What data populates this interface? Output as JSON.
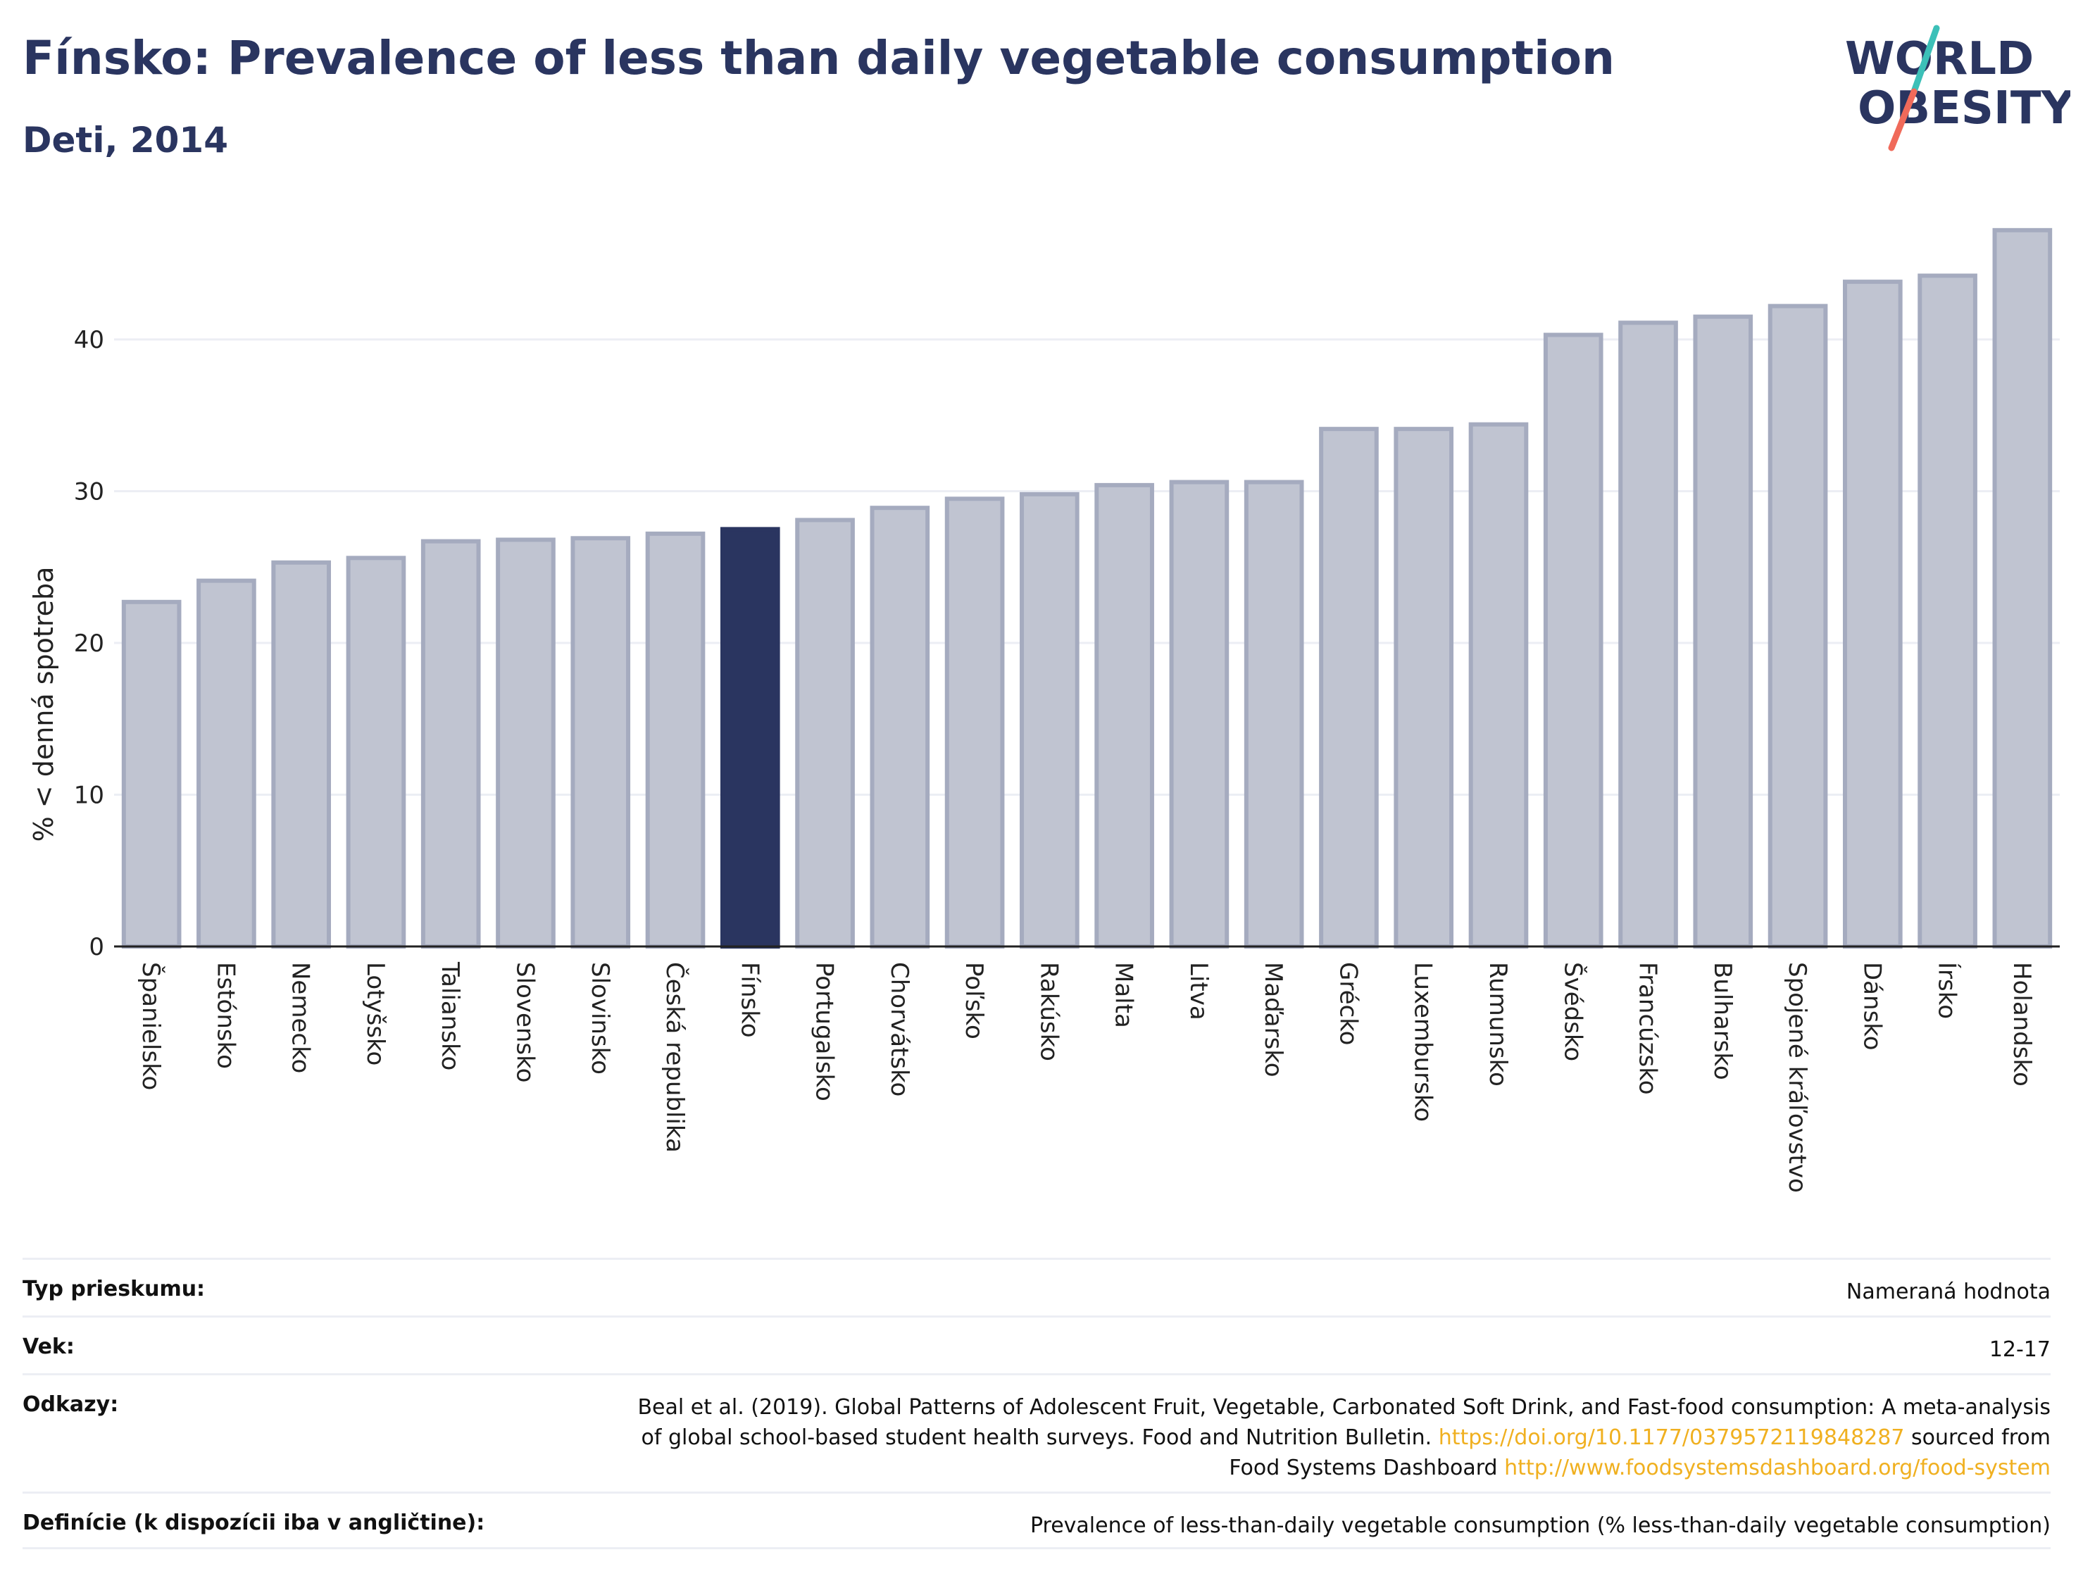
{
  "header": {
    "title": "Fínsko: Prevalence of less than daily vegetable consumption",
    "subtitle": "Deti, 2014"
  },
  "logo": {
    "line1": "WORLD",
    "line2": "OBESITY",
    "text_color": "#2a3560",
    "slash_colors": [
      "#3cc0b8",
      "#f06a5a"
    ]
  },
  "chart_data": {
    "type": "bar",
    "categories": [
      "Španielsko",
      "Estónsko",
      "Nemecko",
      "Lotyšsko",
      "Taliansko",
      "Slovensko",
      "Slovinsko",
      "Česká republika",
      "Fínsko",
      "Portugalsko",
      "Chorvátsko",
      "Poľsko",
      "Rakúsko",
      "Malta",
      "Litva",
      "Maďarsko",
      "Grécko",
      "Luxembursko",
      "Rumunsko",
      "Švédsko",
      "Francúzsko",
      "Bulharsko",
      "Spojené kráľovstvo",
      "Dánsko",
      "Írsko",
      "Holandsko"
    ],
    "values": [
      22.7,
      24.1,
      25.3,
      25.6,
      26.7,
      26.8,
      26.9,
      27.2,
      27.5,
      28.1,
      28.9,
      29.5,
      29.8,
      30.4,
      30.6,
      30.6,
      34.1,
      34.1,
      34.4,
      40.3,
      41.1,
      41.5,
      42.2,
      43.8,
      44.2,
      47.2
    ],
    "highlight": "Fínsko",
    "xlabel": "",
    "ylabel": "% < denná spotreba",
    "ylim": [
      0,
      48
    ],
    "yticks": [
      0,
      10,
      20,
      30,
      40
    ],
    "grid": true,
    "colors": {
      "bar": "#c0c4d1",
      "bar_border": "#a5abbf",
      "highlight": "#2a3560",
      "grid": "#eceef4",
      "axis": "#222222"
    }
  },
  "info": {
    "survey_type": {
      "label": "Typ prieskumu:",
      "value": "Nameraná hodnota"
    },
    "age": {
      "label": "Vek:",
      "value": "12-17"
    },
    "references": {
      "label": "Odkazy:",
      "line1": "Beal et al. (2019). Global Patterns of Adolescent Fruit, Vegetable, Carbonated Soft Drink, and Fast-food consumption: A meta-analysis",
      "line2_text": "of global school-based student health surveys. Food and Nutrition Bulletin.",
      "line2_link": "https://doi.org/10.1177/0379572119848287",
      "line2_tail": "sourced from",
      "line3_text": "Food Systems Dashboard",
      "line3_link": "http://www.foodsystemsdashboard.org/food-system"
    },
    "definitions": {
      "label": "Definície (k dispozícii iba v angličtine):",
      "value": "Prevalence of less-than-daily vegetable consumption (% less-than-daily vegetable consumption)"
    }
  }
}
